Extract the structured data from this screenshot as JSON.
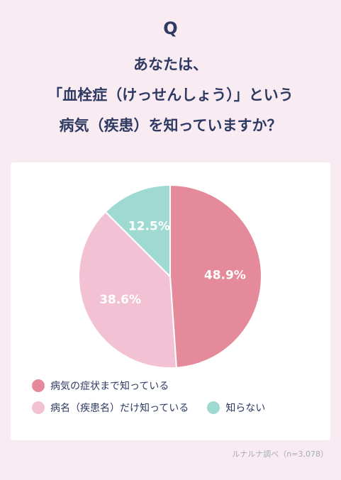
{
  "q_letter": "Q",
  "question_lines": [
    "あなたは、",
    "「血栓症（けっせんしょう）」という",
    "病気（疾患）を知っていますか？"
  ],
  "chart_data": {
    "type": "pie",
    "categories": [
      "病気の症状まで知っている",
      "病名（疾患名）だけ知っている",
      "知らない"
    ],
    "values": [
      48.9,
      38.6,
      12.5
    ],
    "data_labels": [
      "48.9%",
      "38.6%",
      "12.5%"
    ],
    "colors": [
      "#e48a9a",
      "#f2c2d4",
      "#9fdad2"
    ],
    "legend_position": "bottom-left"
  },
  "source": "ルナルナ調べ（n=3,078）"
}
